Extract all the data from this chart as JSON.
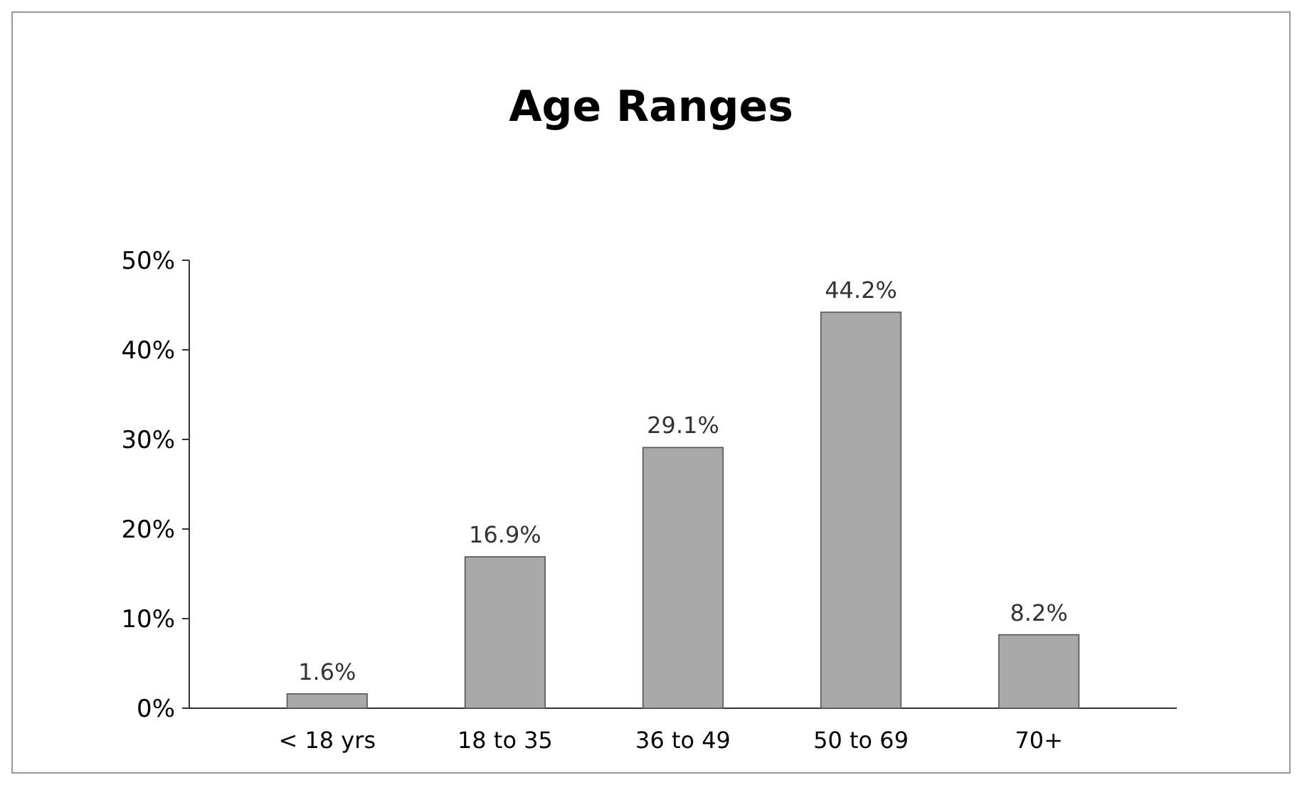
{
  "chart_data": {
    "type": "bar",
    "title": "Age Ranges",
    "categories": [
      "< 18 yrs",
      "18 to 35",
      "36 to 49",
      "50 to 69",
      "70+"
    ],
    "values": [
      1.6,
      16.9,
      29.1,
      44.2,
      8.2
    ],
    "value_labels": [
      "1.6%",
      "16.9%",
      "29.1%",
      "44.2%",
      "8.2%"
    ],
    "color": "#a9a9a9",
    "ylim": [
      0,
      50
    ],
    "yticks": [
      {
        "value": 0,
        "label": "0%"
      },
      {
        "value": 10,
        "label": "10%"
      },
      {
        "value": 20,
        "label": "20%"
      },
      {
        "value": 30,
        "label": "30%"
      },
      {
        "value": 40,
        "label": "40%"
      },
      {
        "value": 50,
        "label": "50%"
      }
    ],
    "grid": false
  }
}
